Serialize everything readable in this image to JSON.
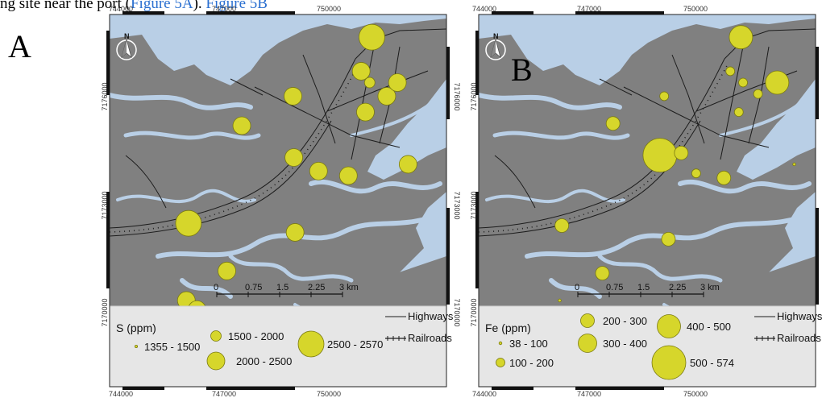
{
  "caption": {
    "prefix": "ng site near the port (",
    "link1": "Figure 5A",
    "middle": "). ",
    "link2": "Figure 5B"
  },
  "panels": [
    {
      "letter": "A",
      "x_ticks": [
        "744000",
        "747000",
        "750000"
      ],
      "y_ticks": [
        "7176000",
        "7173000",
        "7170000"
      ],
      "north_label": "N",
      "scalebar": [
        "0",
        "0.75",
        "1.5",
        "2.25",
        "3 km"
      ],
      "legend": {
        "title": "S (ppm)",
        "classes": [
          "1355 - 1500",
          "1500 - 2000",
          "2000 - 2500",
          "2500 - 2570"
        ],
        "lines": [
          "Highways",
          "Railroads"
        ]
      },
      "points": [
        {
          "e": 749950,
          "n": 7176500,
          "cls": 3
        },
        {
          "e": 749700,
          "n": 7175750,
          "cls": 2
        },
        {
          "e": 749900,
          "n": 7175500,
          "cls": 1
        },
        {
          "e": 750300,
          "n": 7175200,
          "cls": 2
        },
        {
          "e": 750550,
          "n": 7175500,
          "cls": 2
        },
        {
          "e": 748100,
          "n": 7175200,
          "cls": 2
        },
        {
          "e": 749800,
          "n": 7174850,
          "cls": 2
        },
        {
          "e": 746900,
          "n": 7174550,
          "cls": 2
        },
        {
          "e": 748120,
          "n": 7173850,
          "cls": 2
        },
        {
          "e": 748350,
          "n": 7173800,
          "cls": 4
        },
        {
          "e": 748700,
          "n": 7173550,
          "cls": 2
        },
        {
          "e": 749400,
          "n": 7173450,
          "cls": 2
        },
        {
          "e": 750800,
          "n": 7173700,
          "cls": 2
        },
        {
          "e": 745650,
          "n": 7172400,
          "cls": 3
        },
        {
          "e": 748150,
          "n": 7172200,
          "cls": 2
        },
        {
          "e": 746550,
          "n": 7171350,
          "cls": 2
        },
        {
          "e": 745600,
          "n": 7170700,
          "cls": 2
        },
        {
          "e": 745850,
          "n": 7170500,
          "cls": 2
        },
        {
          "e": 744900,
          "n": 7169550,
          "cls": 2
        }
      ]
    },
    {
      "letter": "B",
      "x_ticks": [
        "744000",
        "747000",
        "750000"
      ],
      "y_ticks": [
        "7176000",
        "7173000",
        "7170000"
      ],
      "north_label": "N",
      "scalebar": [
        "0",
        "0.75",
        "1.5",
        "2.25",
        "3 km"
      ],
      "legend": {
        "title": "Fe (ppm)",
        "classes": [
          "38 - 100",
          "100 - 200",
          "200 - 300",
          "300 - 400",
          "400 - 500",
          "500 - 574"
        ],
        "lines": [
          "Highways",
          "Railroads"
        ]
      },
      "points": [
        {
          "e": 749950,
          "n": 7176500,
          "cls": 4
        },
        {
          "e": 749700,
          "n": 7175750,
          "cls": 1
        },
        {
          "e": 750000,
          "n": 7175500,
          "cls": 1
        },
        {
          "e": 750350,
          "n": 7175250,
          "cls": 1
        },
        {
          "e": 750800,
          "n": 7175500,
          "cls": 4
        },
        {
          "e": 748150,
          "n": 7175200,
          "cls": 1
        },
        {
          "e": 749900,
          "n": 7174850,
          "cls": 1
        },
        {
          "e": 746950,
          "n": 7174600,
          "cls": 2
        },
        {
          "e": 748050,
          "n": 7173900,
          "cls": 5
        },
        {
          "e": 748550,
          "n": 7173950,
          "cls": 2
        },
        {
          "e": 748900,
          "n": 7173500,
          "cls": 1
        },
        {
          "e": 749550,
          "n": 7173400,
          "cls": 2
        },
        {
          "e": 751200,
          "n": 7173700,
          "cls": 0
        },
        {
          "e": 745750,
          "n": 7172350,
          "cls": 2
        },
        {
          "e": 748250,
          "n": 7172050,
          "cls": 2
        },
        {
          "e": 746700,
          "n": 7171300,
          "cls": 2
        },
        {
          "e": 745700,
          "n": 7170700,
          "cls": 0
        },
        {
          "e": 745950,
          "n": 7170450,
          "cls": 0
        },
        {
          "e": 745000,
          "n": 7169550,
          "cls": 1
        }
      ]
    }
  ],
  "colors": {
    "land": "#808080",
    "water": "#b9cfe6",
    "symbol": "#d6d62b",
    "symbol_stroke": "#7a7a10",
    "legend_bg": "#e6e6e6",
    "road": "#1c1c1c"
  }
}
